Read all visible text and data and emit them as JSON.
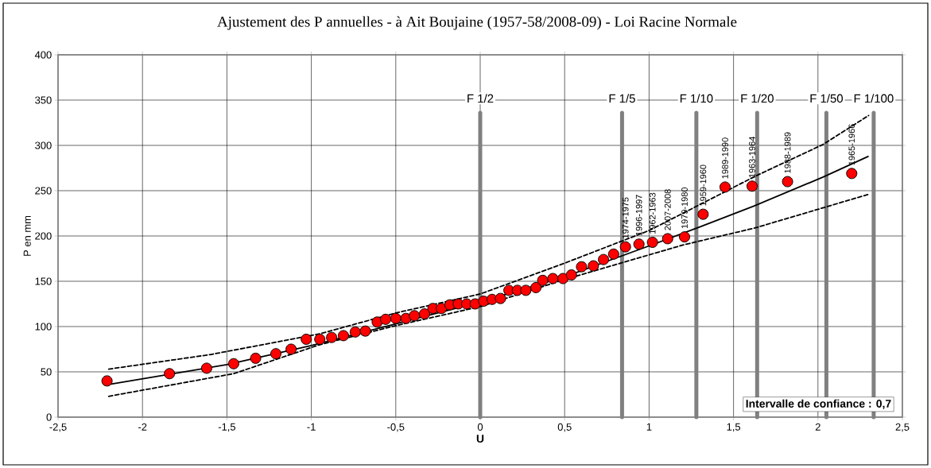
{
  "chart_data": {
    "type": "scatter",
    "title": "Ajustement des P annuelles - à Ait Boujaine (1957-58/2008-09) - Loi Racine Normale",
    "xlabel": "U",
    "ylabel": "P en mm",
    "xlim": [
      -2.5,
      2.5
    ],
    "ylim": [
      0,
      400
    ],
    "xticks": [
      {
        "value": -2.5,
        "label": "-2,5"
      },
      {
        "value": -2,
        "label": "-2"
      },
      {
        "value": -1.5,
        "label": "-1,5"
      },
      {
        "value": -1,
        "label": "-1"
      },
      {
        "value": -0.5,
        "label": "-0,5"
      },
      {
        "value": 0,
        "label": "0"
      },
      {
        "value": 0.5,
        "label": "0,5"
      },
      {
        "value": 1,
        "label": "1"
      },
      {
        "value": 1.5,
        "label": "1,5"
      },
      {
        "value": 2,
        "label": "2"
      },
      {
        "value": 2.5,
        "label": "2,5"
      }
    ],
    "yticks": [
      0,
      50,
      100,
      150,
      200,
      250,
      300,
      350,
      400
    ],
    "grid": true,
    "series": [
      {
        "color": "#ff0000",
        "marker": "circle",
        "x": [
          -2.21,
          -1.84,
          -1.62,
          -1.46,
          -1.33,
          -1.21,
          -1.12,
          -1.03,
          -0.95,
          -0.88,
          -0.81,
          -0.74,
          -0.68,
          -0.61,
          -0.56,
          -0.5,
          -0.44,
          -0.39,
          -0.33,
          -0.28,
          -0.23,
          -0.18,
          -0.13,
          -0.08,
          -0.03,
          0.02,
          0.07,
          0.12,
          0.17,
          0.22,
          0.27,
          0.33,
          0.37,
          0.43,
          0.49,
          0.54,
          0.6,
          0.67,
          0.73,
          0.79,
          0.86,
          0.94,
          1.02,
          1.11,
          1.21,
          1.32,
          1.45,
          1.61,
          1.82,
          2.2
        ],
        "values": [
          40,
          48,
          54,
          59,
          65,
          70,
          75,
          86,
          86,
          88,
          90,
          94,
          95,
          105,
          108,
          109,
          109,
          112,
          114,
          120,
          120,
          124,
          125,
          125,
          125,
          128,
          130,
          131,
          140,
          140,
          140,
          143,
          151,
          153,
          153,
          157,
          166,
          167,
          174,
          180,
          188,
          191,
          193,
          197,
          199,
          224,
          254,
          255,
          260,
          269
        ]
      },
      {
        "type": "line",
        "color": "#000000",
        "marker": "none",
        "line_style": "solid",
        "x": [
          -2.2,
          -1.5,
          -1,
          -0.5,
          0,
          0.5,
          1,
          1.3,
          1.62,
          2.03,
          2.3
        ],
        "values": [
          36,
          58,
          79,
          103,
          127,
          155,
          189,
          210,
          233,
          265,
          288
        ]
      },
      {
        "type": "line",
        "color": "#000000",
        "marker": "none",
        "line_style": "dashed",
        "x": [
          -2.2,
          -1.6,
          -0.95,
          -0.5,
          0,
          0.5,
          1,
          1.64,
          2.03,
          2.3
        ],
        "values": [
          53,
          69,
          92,
          115,
          136,
          170,
          206,
          267,
          301,
          333
        ]
      },
      {
        "type": "line",
        "color": "#000000",
        "marker": "none",
        "line_style": "dashed",
        "x": [
          -2.2,
          -1.46,
          -0.95,
          -0.5,
          0,
          0.5,
          1.2,
          1.63,
          2.3
        ],
        "values": [
          23,
          48,
          80,
          101,
          122,
          152,
          190,
          209,
          246
        ]
      }
    ],
    "ref_lines": [
      {
        "axis": "x",
        "value": 0,
        "label": "F 1/2",
        "color": "#808080"
      },
      {
        "axis": "x",
        "value": 0.84,
        "label": "F 1/5",
        "color": "#808080"
      },
      {
        "axis": "x",
        "value": 1.28,
        "label": "F 1/10",
        "color": "#808080"
      },
      {
        "axis": "x",
        "value": 1.64,
        "label": "F 1/20",
        "color": "#808080"
      },
      {
        "axis": "x",
        "value": 2.05,
        "label": "F 1/50",
        "color": "#808080"
      },
      {
        "axis": "x",
        "value": 2.33,
        "label": "F 1/100",
        "color": "#808080"
      }
    ],
    "annotations": [
      "Intervalle de confiance : 0,7",
      {
        "text": "1974-1975",
        "x": 0.86,
        "y": 188
      },
      {
        "text": "1996-1997",
        "x": 0.94,
        "y": 191
      },
      {
        "text": "1962-1963",
        "x": 1.02,
        "y": 193
      },
      {
        "text": "2007-2008",
        "x": 1.11,
        "y": 197
      },
      {
        "text": "1979-1980",
        "x": 1.21,
        "y": 199
      },
      {
        "text": "1959-1960",
        "x": 1.32,
        "y": 224
      },
      {
        "text": "1989-1990",
        "x": 1.45,
        "y": 254
      },
      {
        "text": "1963-1964",
        "x": 1.61,
        "y": 255
      },
      {
        "text": "1988-1989",
        "x": 1.82,
        "y": 260
      },
      {
        "text": "1965-1966",
        "x": 2.2,
        "y": 269
      }
    ]
  }
}
